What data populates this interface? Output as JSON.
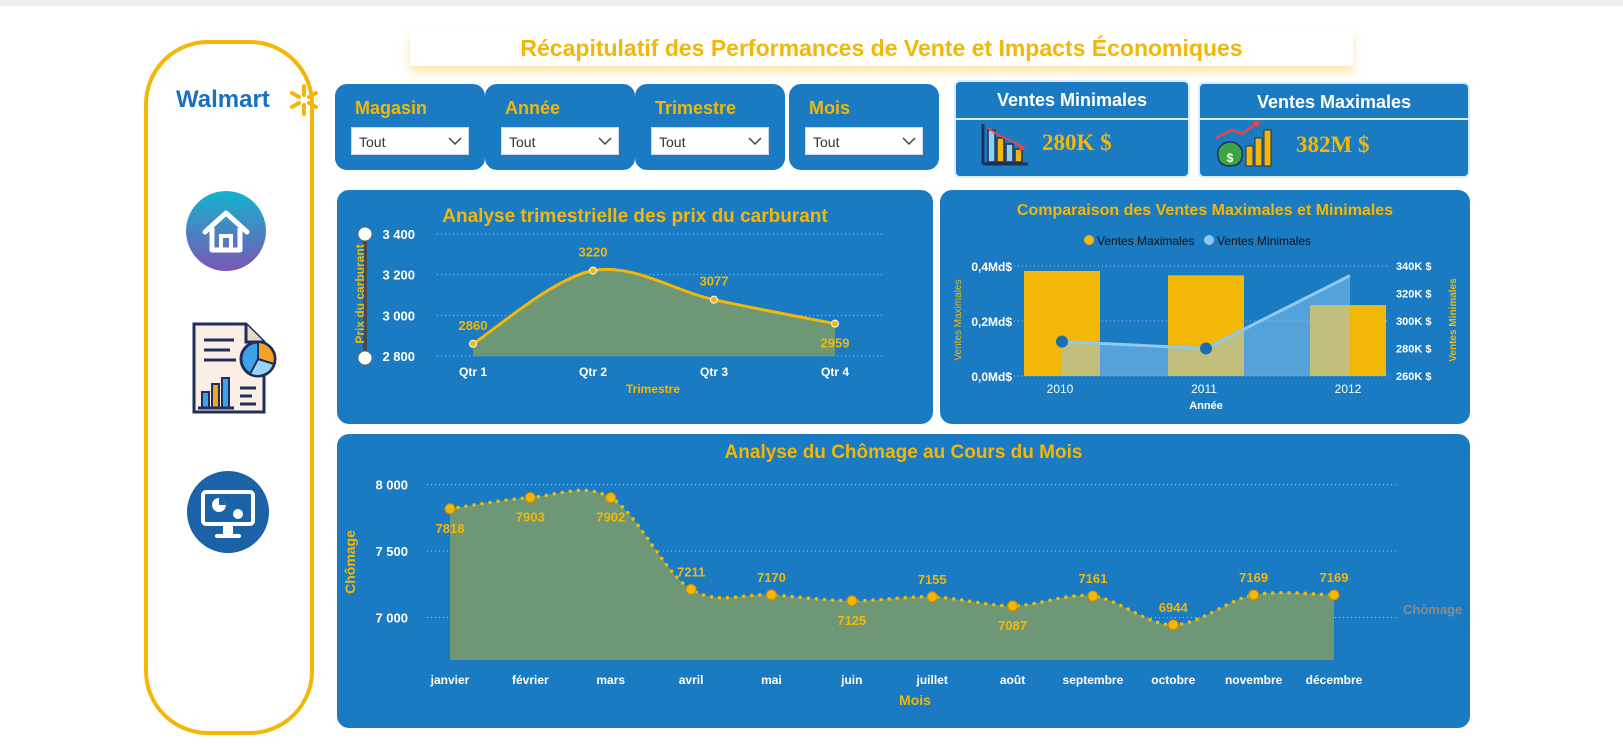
{
  "title": "Récapitulatif des Performances de Vente et Impacts Économiques",
  "brand": "Walmart",
  "colors": {
    "accent": "#F2B707",
    "panel": "#1A7BC2",
    "area": "#6E9775",
    "light_series": "#8FC8F0"
  },
  "nav": [
    {
      "name": "home-icon"
    },
    {
      "name": "report-icon"
    },
    {
      "name": "dashboard-monitor-icon"
    }
  ],
  "filters": [
    {
      "label": "Magasin",
      "value": "Tout"
    },
    {
      "label": "Année",
      "value": "Tout"
    },
    {
      "label": "Trimestre",
      "value": "Tout"
    },
    {
      "label": "Mois",
      "value": "Tout"
    }
  ],
  "kpis": {
    "min": {
      "title": "Ventes Minimales",
      "value": "280K $",
      "icon": "bar-chart-icon"
    },
    "max": {
      "title": "Ventes Maximales",
      "value": "382M $",
      "icon": "money-growth-icon"
    }
  },
  "chart_data": [
    {
      "type": "area",
      "title": "Analyse trimestrielle des prix du carburant",
      "xlabel": "Trimestre",
      "ylabel": "Prix du carburant",
      "categories": [
        "Qtr 1",
        "Qtr 2",
        "Qtr 3",
        "Qtr 4"
      ],
      "values": [
        2860,
        3220,
        3077,
        2959
      ],
      "value_labels": [
        "2860",
        "3220",
        "3077",
        "2959"
      ],
      "ylim": [
        2800,
        3400
      ],
      "yticks": [
        2800,
        3000,
        3200,
        3400
      ],
      "ytick_labels": [
        "2 800",
        "3 000",
        "3 200",
        "3 400"
      ],
      "grid": true
    },
    {
      "type": "bar",
      "title": "Comparaison des Ventes Maximales et Minimales",
      "xlabel": "Année",
      "ylabel": "Ventes Maximales",
      "ylabel_right": "Ventes Minimales",
      "categories": [
        "2010",
        "2011",
        "2012"
      ],
      "legend_position": "top",
      "series": [
        {
          "name": "Ventes Maximales",
          "values": [
            0.382,
            0.366,
            0.258
          ],
          "axis": "left"
        },
        {
          "name": "Ventes Minimales",
          "values": [
            285,
            280,
            333
          ],
          "axis": "right"
        }
      ],
      "ylim": [
        0,
        0.4
      ],
      "yticks": [
        0,
        0.2,
        0.4
      ],
      "ytick_labels": [
        "0,0Md$",
        "0,2Md$",
        "0,4Md$"
      ],
      "ylim_right": [
        260,
        340
      ],
      "yticks_right": [
        260,
        280,
        300,
        320,
        340
      ],
      "ytick_labels_right": [
        "260K $",
        "280K $",
        "300K $",
        "320K $",
        "340K $"
      ]
    },
    {
      "type": "area",
      "title": "Analyse du Chômage au Cours du Mois",
      "xlabel": "Mois",
      "ylabel": "Chômage",
      "series_label": "Chômage",
      "categories": [
        "janvier",
        "février",
        "mars",
        "avril",
        "mai",
        "juin",
        "juillet",
        "août",
        "septembre",
        "octobre",
        "novembre",
        "décembre"
      ],
      "values": [
        7818,
        7903,
        7902,
        7211,
        7170,
        7125,
        7155,
        7087,
        7161,
        6944,
        7169,
        7169
      ],
      "value_labels": [
        "7818",
        "7903",
        "7902",
        "7211",
        "7170",
        "7125",
        "7155",
        "7087",
        "7161",
        "6944",
        "7169",
        "7169"
      ],
      "ylim": [
        6800,
        8050
      ],
      "yticks": [
        7000,
        7500,
        8000
      ],
      "ytick_labels": [
        "7 000",
        "7 500",
        "8 000"
      ],
      "grid": true
    }
  ]
}
